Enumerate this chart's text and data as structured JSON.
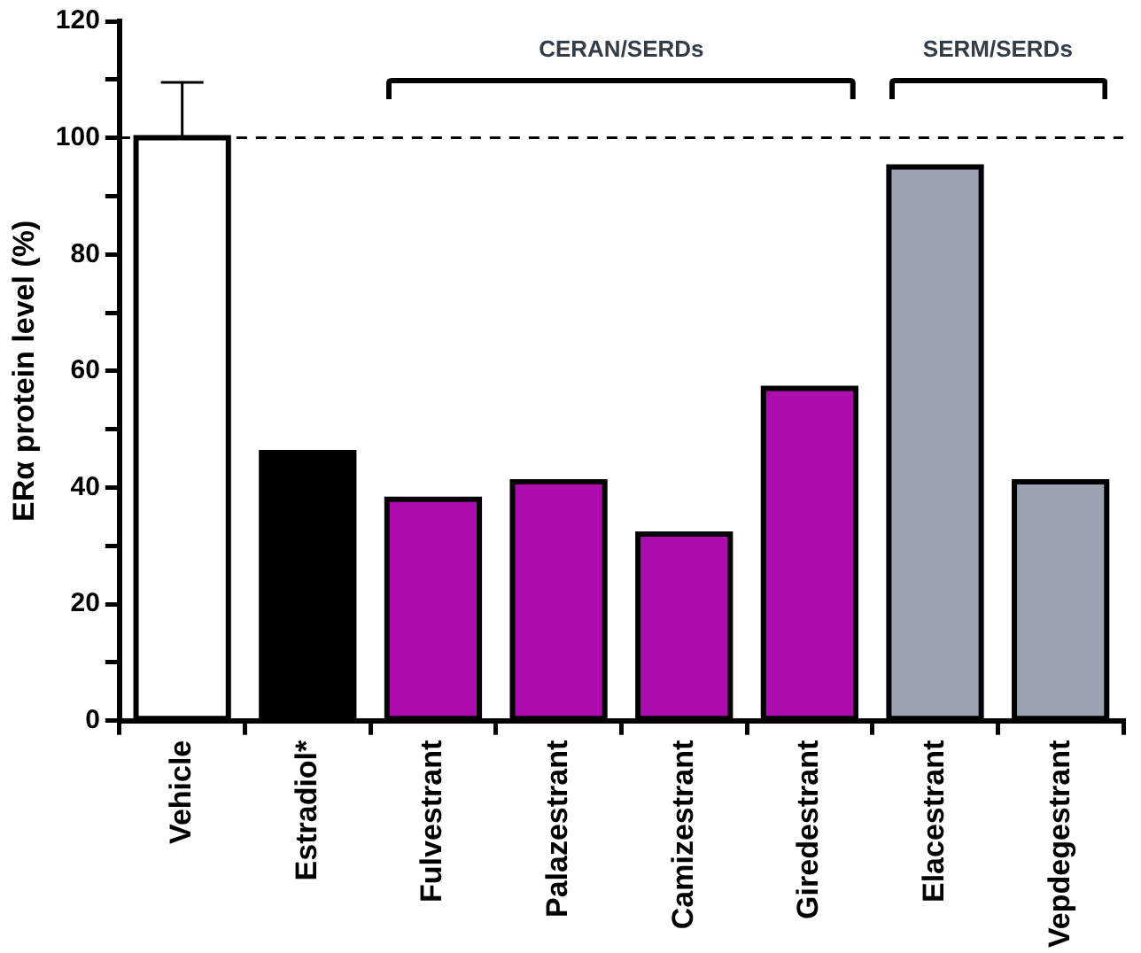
{
  "chart_data": {
    "type": "bar",
    "ylabel": "ERα protein level (%)",
    "categories": [
      "Vehicle",
      "Estradiol*",
      "Fulvestrant",
      "Palazestrant",
      "Camizestrant",
      "Giredestrant",
      "Elacestrant",
      "Vepdegestrant"
    ],
    "values": [
      100,
      46,
      38,
      41,
      32,
      57,
      95,
      41
    ],
    "colors": [
      "#ffffff",
      "#000000",
      "#ad0caf",
      "#ad0caf",
      "#ad0caf",
      "#ad0caf",
      "#9ba3b3",
      "#9ba3b3"
    ],
    "errors": [
      [
        100,
        109.5
      ],
      null,
      null,
      null,
      null,
      null,
      null,
      null
    ],
    "ylim": [
      0,
      120
    ],
    "yticks": [
      0,
      {
        "value": 10,
        "label": null
      },
      20,
      {
        "value": 30,
        "label": null
      },
      40,
      {
        "value": 50,
        "label": null
      },
      60,
      {
        "value": 70,
        "label": null
      },
      80,
      {
        "value": 90,
        "label": null
      },
      100,
      {
        "value": 110,
        "label": null
      },
      120
    ],
    "ref_lines": [
      {
        "axis": "y",
        "value": 100,
        "line_style": "dashed",
        "color": "#000000"
      }
    ],
    "annotations": [
      "CERAN/SERDs",
      "SERM/SERDs"
    ],
    "grid": false,
    "legend": false
  }
}
